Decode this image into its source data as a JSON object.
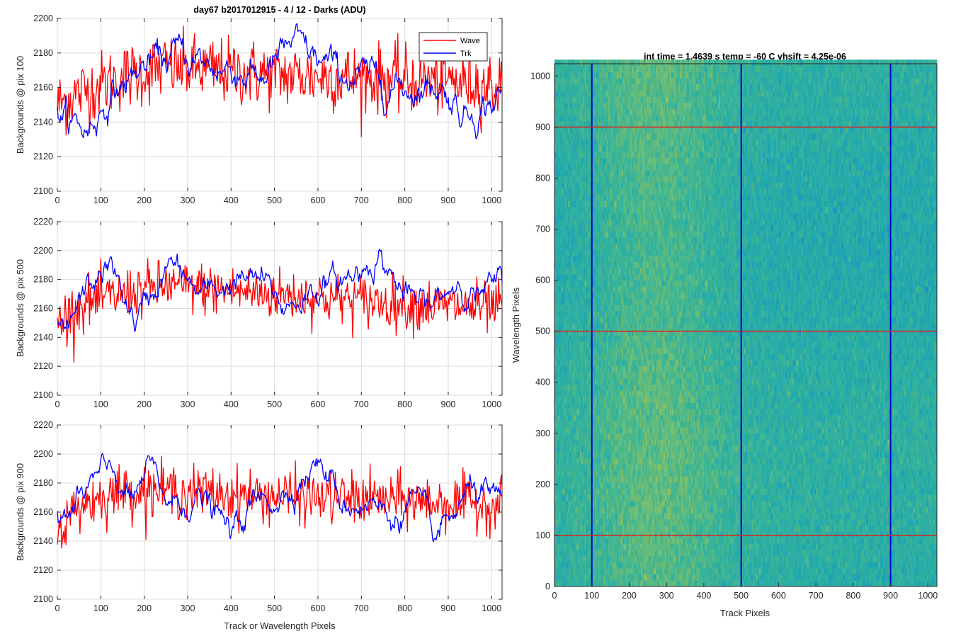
{
  "chart_data": [
    {
      "type": "line",
      "title": "day67 b2017012915 - 4 / 12 - Darks (ADU)",
      "xlabel": "",
      "ylabel": "Backgrounds @ pix 100",
      "xlim": [
        0,
        1024
      ],
      "ylim": [
        2100,
        2200
      ],
      "xticks": [
        0,
        100,
        200,
        300,
        400,
        500,
        600,
        700,
        800,
        900,
        1000
      ],
      "yticks": [
        2100,
        2120,
        2140,
        2160,
        2180,
        2200
      ],
      "grid": true,
      "legend": {
        "placement": "top-right",
        "entries": [
          "Wave",
          "Trk"
        ]
      },
      "series": [
        {
          "name": "Wave",
          "color": "#ff0000",
          "mean": 2166,
          "noise": 13,
          "trend_x": [
            0,
            60,
            150,
            250,
            350,
            450,
            550,
            650,
            750,
            850,
            950,
            1024
          ],
          "trend_y": [
            2150,
            2158,
            2166,
            2172,
            2170,
            2168,
            2167,
            2166,
            2165,
            2164,
            2163,
            2160
          ]
        },
        {
          "name": "Trk",
          "color": "#0000ff",
          "mean": 2166,
          "noise": 3,
          "trend_x": [
            0,
            30,
            70,
            120,
            200,
            280,
            350,
            420,
            470,
            540,
            600,
            650,
            720,
            800,
            880,
            940,
            980,
            1024
          ],
          "trend_y": [
            2150,
            2140,
            2135,
            2155,
            2172,
            2180,
            2172,
            2170,
            2165,
            2185,
            2175,
            2168,
            2165,
            2160,
            2162,
            2145,
            2150,
            2155
          ]
        }
      ]
    },
    {
      "type": "line",
      "title": "",
      "xlabel": "",
      "ylabel": "Backgrounds @ pix 500",
      "xlim": [
        0,
        1024
      ],
      "ylim": [
        2100,
        2220
      ],
      "xticks": [
        0,
        100,
        200,
        300,
        400,
        500,
        600,
        700,
        800,
        900,
        1000
      ],
      "yticks": [
        2100,
        2120,
        2140,
        2160,
        2180,
        2200,
        2220
      ],
      "grid": true,
      "series": [
        {
          "name": "Wave",
          "color": "#ff0000",
          "mean": 2168,
          "noise": 12,
          "trend_x": [
            0,
            50,
            150,
            250,
            400,
            600,
            800,
            1024
          ],
          "trend_y": [
            2150,
            2162,
            2170,
            2176,
            2172,
            2168,
            2163,
            2160
          ]
        },
        {
          "name": "Trk",
          "color": "#0000ff",
          "mean": 2172,
          "noise": 3,
          "trend_x": [
            0,
            20,
            60,
            120,
            180,
            260,
            330,
            400,
            470,
            520,
            600,
            680,
            740,
            800,
            860,
            920,
            980,
            1024
          ],
          "trend_y": [
            2150,
            2140,
            2170,
            2190,
            2150,
            2192,
            2168,
            2178,
            2180,
            2160,
            2175,
            2182,
            2198,
            2168,
            2160,
            2180,
            2168,
            2180
          ]
        }
      ]
    },
    {
      "type": "line",
      "title": "",
      "xlabel": "Track or Wavelength Pixels",
      "ylabel": "Backgrounds @ pix 900",
      "xlim": [
        0,
        1024
      ],
      "ylim": [
        2100,
        2220
      ],
      "xticks": [
        0,
        100,
        200,
        300,
        400,
        500,
        600,
        700,
        800,
        900,
        1000
      ],
      "yticks": [
        2100,
        2120,
        2140,
        2160,
        2180,
        2200,
        2220
      ],
      "grid": true,
      "series": [
        {
          "name": "Wave",
          "color": "#ff0000",
          "mean": 2170,
          "noise": 12,
          "trend_x": [
            0,
            50,
            150,
            250,
            400,
            600,
            800,
            1024
          ],
          "trend_y": [
            2145,
            2165,
            2175,
            2175,
            2172,
            2170,
            2168,
            2165
          ]
        },
        {
          "name": "Trk",
          "color": "#0000ff",
          "mean": 2168,
          "noise": 3,
          "trend_x": [
            0,
            30,
            80,
            130,
            170,
            210,
            260,
            330,
            400,
            450,
            520,
            600,
            660,
            720,
            770,
            820,
            870,
            920,
            960,
            1024
          ],
          "trend_y": [
            2160,
            2158,
            2180,
            2188,
            2165,
            2190,
            2165,
            2170,
            2145,
            2165,
            2172,
            2195,
            2165,
            2168,
            2155,
            2170,
            2140,
            2160,
            2178,
            2160
          ]
        }
      ]
    },
    {
      "type": "heatmap",
      "title": "int time = 1.4639 s    temp = -60 C    vhsift = 4.25e-06",
      "xlabel": "Track Pixels",
      "ylabel": "Wavelength Pixels",
      "xlim": [
        0,
        1024
      ],
      "ylim": [
        0,
        1024
      ],
      "xticks": [
        0,
        100,
        200,
        300,
        400,
        500,
        600,
        700,
        800,
        900,
        1000
      ],
      "yticks": [
        0,
        100,
        200,
        300,
        400,
        500,
        600,
        700,
        800,
        900,
        1000
      ],
      "colormap": [
        "#1a8ec4",
        "#1fa7b0",
        "#3ab597",
        "#7cbf6c",
        "#b7c24a"
      ],
      "hot_band_track": [
        140,
        400
      ],
      "marker_cols": [
        100,
        500,
        900
      ],
      "marker_rows": [
        100,
        500,
        900
      ],
      "col_color": "#0000cc",
      "row_color": "#e02020"
    }
  ]
}
